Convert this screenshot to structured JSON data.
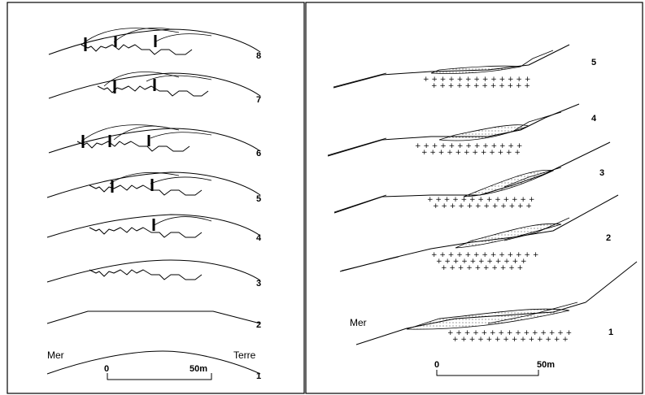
{
  "left_panel": {
    "sea_label": "Mer",
    "land_label": "Terre",
    "stage_numbers": [
      "8",
      "7",
      "6",
      "5",
      "4",
      "3",
      "2",
      "1"
    ],
    "scale": {
      "start": "0",
      "end": "50m"
    }
  },
  "right_panel": {
    "sea_label": "Mer",
    "stage_numbers": [
      "5",
      "4",
      "3",
      "2",
      "1"
    ],
    "scale": {
      "start": "0",
      "end": "50m"
    }
  }
}
